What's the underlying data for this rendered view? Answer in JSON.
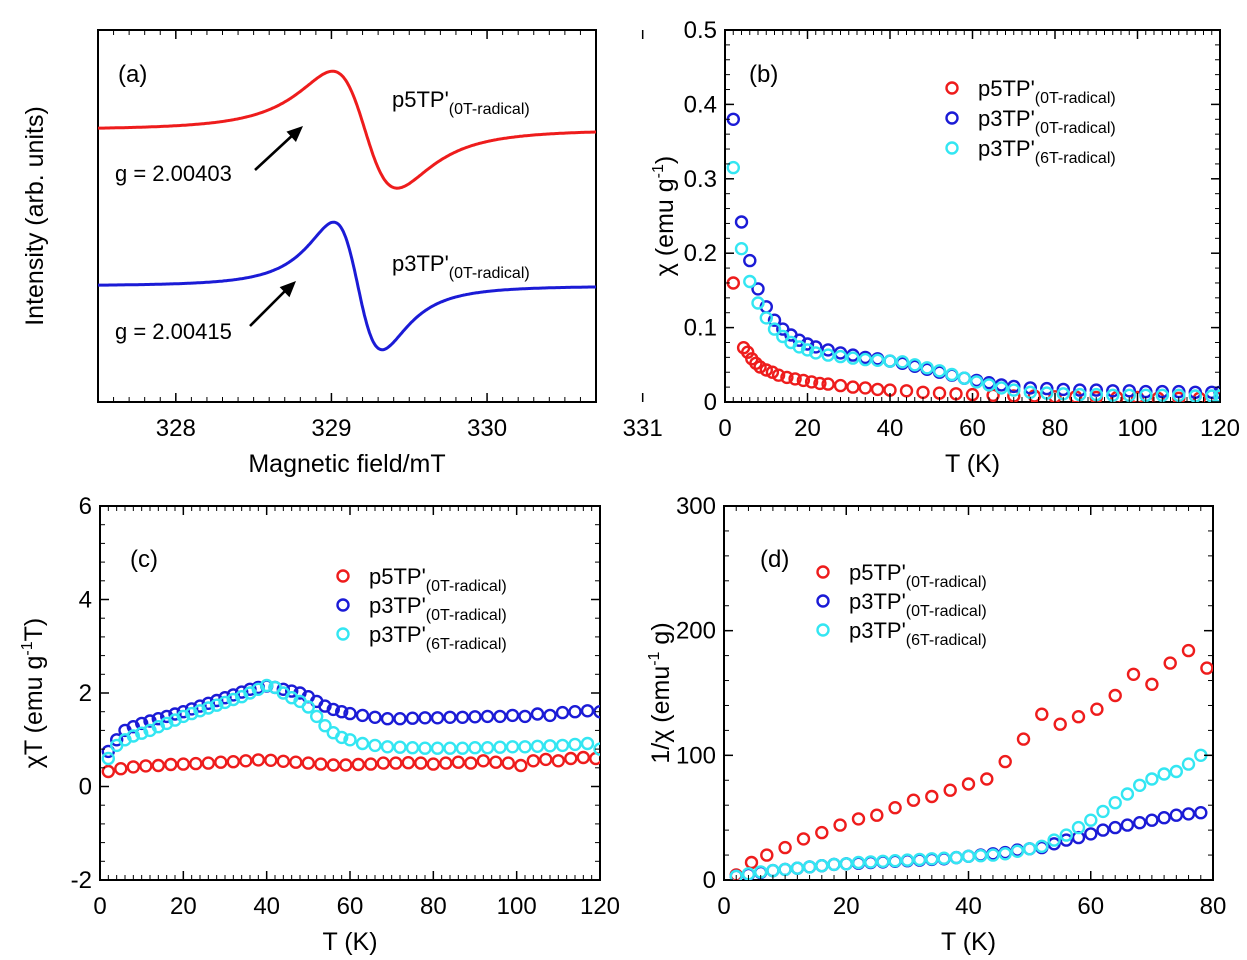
{
  "chart_data": [
    {
      "panel": "(a)",
      "type": "line",
      "xlabel": "Magnetic field/mT",
      "ylabel": "Intensity (arb. units)",
      "xlim": [
        327.5,
        330.7
      ],
      "ylim": [
        0,
        1
      ],
      "y_tick_labels": false,
      "xticks": [
        328,
        329,
        330,
        331
      ],
      "x_tick_labels": [
        "328",
        "329",
        "330",
        "331"
      ],
      "series": [
        {
          "name": "p5TP'(0T-radical)",
          "name_main": "p5TP'",
          "name_sub": "(0T-radical)",
          "color": "#ee1c1c",
          "center": 329.215,
          "half_width": 0.36,
          "amplitude": 0.22,
          "baseline": 0.732,
          "g_value": "g = 2.00403",
          "arrow_x": 329.14
        },
        {
          "name": "p3TP'(0T-radical)",
          "name_main": "p3TP'",
          "name_sub": "(0T-radical)",
          "color": "#1b1bd6",
          "center": 329.17,
          "half_width": 0.27,
          "amplitude": 0.24,
          "baseline": 0.312,
          "g_value": "g = 2.00415",
          "arrow_x": 329.05
        }
      ]
    },
    {
      "panel": "(b)",
      "type": "scatter",
      "xlabel": "T (K)",
      "ylabel_main": "χ  (emu g",
      "ylabel_sup": "-1",
      "ylabel_end": ")",
      "xlim": [
        0,
        120
      ],
      "ylim": [
        0,
        0.5
      ],
      "xticks": [
        0,
        20,
        40,
        60,
        80,
        100,
        120
      ],
      "x_tick_labels": [
        "0",
        "20",
        "40",
        "60",
        "80",
        "100",
        "120"
      ],
      "yticks": [
        0,
        0.1,
        0.2,
        0.3,
        0.4,
        0.5
      ],
      "y_tick_labels": [
        "0",
        "0.1",
        "0.2",
        "0.3",
        "0.4",
        "0.5"
      ],
      "legend_position": "top-right",
      "series": [
        {
          "name": "p5TP'(0T-radical)",
          "name_main": "p5TP'",
          "name_sub": "(0T-radical)",
          "color": "#ee1c1c",
          "x": [
            2,
            4.5,
            5.5,
            6.5,
            7.5,
            8.5,
            10,
            11.5,
            13,
            15,
            17,
            19,
            21,
            23,
            25,
            28,
            31,
            34,
            37,
            40,
            44,
            48,
            52,
            56,
            60,
            65,
            70,
            75,
            80,
            85,
            90,
            95,
            100,
            105,
            110,
            115,
            120
          ],
          "y": [
            0.16,
            0.073,
            0.067,
            0.058,
            0.052,
            0.047,
            0.043,
            0.04,
            0.036,
            0.033,
            0.031,
            0.029,
            0.027,
            0.025,
            0.024,
            0.022,
            0.02,
            0.019,
            0.017,
            0.016,
            0.015,
            0.013,
            0.012,
            0.011,
            0.01,
            0.009,
            0.008,
            0.008,
            0.007,
            0.007,
            0.006,
            0.006,
            0.006,
            0.005,
            0.005,
            0.005,
            0.005
          ]
        },
        {
          "name": "p3TP'(0T-radical)",
          "name_main": "p3TP'",
          "name_sub": "(0T-radical)",
          "color": "#1b1bd6",
          "x": [
            2,
            4,
            6,
            8,
            10,
            12,
            14,
            16,
            18,
            20,
            22,
            25,
            28,
            31,
            34,
            37,
            40,
            43,
            46,
            49,
            52,
            55,
            58,
            61,
            64,
            67,
            70,
            74,
            78,
            82,
            86,
            90,
            94,
            98,
            102,
            106,
            110,
            114,
            118,
            120
          ],
          "y": [
            0.38,
            0.242,
            0.19,
            0.152,
            0.128,
            0.11,
            0.098,
            0.09,
            0.083,
            0.078,
            0.074,
            0.07,
            0.066,
            0.063,
            0.06,
            0.058,
            0.055,
            0.052,
            0.048,
            0.044,
            0.04,
            0.036,
            0.032,
            0.029,
            0.026,
            0.023,
            0.021,
            0.019,
            0.018,
            0.017,
            0.016,
            0.016,
            0.015,
            0.015,
            0.014,
            0.014,
            0.014,
            0.013,
            0.013,
            0.013
          ]
        },
        {
          "name": "p3TP'(6T-radical)",
          "name_main": "p3TP'",
          "name_sub": "(6T-radical)",
          "color": "#33e6f2",
          "x": [
            2,
            4,
            6,
            8,
            10,
            12,
            14,
            16,
            18,
            20,
            22,
            25,
            28,
            31,
            34,
            37,
            40,
            43,
            46,
            49,
            52,
            55,
            58,
            61,
            64,
            67,
            70,
            74,
            78,
            82,
            86,
            90,
            94,
            98,
            102,
            106,
            110,
            114,
            118,
            120
          ],
          "y": [
            0.315,
            0.206,
            0.162,
            0.133,
            0.113,
            0.098,
            0.088,
            0.08,
            0.074,
            0.07,
            0.066,
            0.063,
            0.061,
            0.059,
            0.057,
            0.056,
            0.055,
            0.054,
            0.05,
            0.046,
            0.042,
            0.037,
            0.032,
            0.027,
            0.023,
            0.019,
            0.016,
            0.013,
            0.012,
            0.011,
            0.01,
            0.01,
            0.009,
            0.009,
            0.009,
            0.009,
            0.009,
            0.008,
            0.008,
            0.008
          ]
        }
      ]
    },
    {
      "panel": "(c)",
      "type": "scatter",
      "xlabel": "T (K)",
      "ylabel_main": "χT  (emu g",
      "ylabel_sup": "-1",
      "ylabel_end": "T)",
      "xlim": [
        0,
        120
      ],
      "ylim": [
        -2,
        6
      ],
      "xticks": [
        0,
        20,
        40,
        60,
        80,
        100,
        120
      ],
      "x_tick_labels": [
        "0",
        "20",
        "40",
        "60",
        "80",
        "100",
        "120"
      ],
      "yticks": [
        -2,
        0,
        2,
        4,
        6
      ],
      "y_tick_labels": [
        "-2",
        "0",
        "2",
        "4",
        "6"
      ],
      "legend_position": "top-right",
      "series": [
        {
          "name": "p5TP'(0T-radical)",
          "name_main": "p5TP'",
          "name_sub": "(0T-radical)",
          "color": "#ee1c1c",
          "x": [
            2,
            5,
            8,
            11,
            14,
            17,
            20,
            23,
            26,
            29,
            32,
            35,
            38,
            41,
            44,
            47,
            50,
            53,
            56,
            59,
            62,
            65,
            68,
            71,
            74,
            77,
            80,
            83,
            86,
            89,
            92,
            95,
            98,
            101,
            104,
            107,
            110,
            113,
            116,
            119
          ],
          "y": [
            0.32,
            0.38,
            0.42,
            0.44,
            0.45,
            0.47,
            0.48,
            0.49,
            0.5,
            0.52,
            0.53,
            0.55,
            0.57,
            0.56,
            0.54,
            0.52,
            0.5,
            0.48,
            0.46,
            0.46,
            0.47,
            0.48,
            0.5,
            0.5,
            0.51,
            0.5,
            0.48,
            0.5,
            0.52,
            0.5,
            0.55,
            0.52,
            0.5,
            0.45,
            0.55,
            0.58,
            0.55,
            0.6,
            0.62,
            0.6
          ]
        },
        {
          "name": "p3TP'(0T-radical)",
          "name_main": "p3TP'",
          "name_sub": "(0T-radical)",
          "color": "#1b1bd6",
          "x": [
            2,
            4,
            6,
            8,
            10,
            12,
            14,
            16,
            18,
            20,
            22,
            24,
            26,
            28,
            30,
            32,
            34,
            36,
            38,
            40,
            42,
            44,
            46,
            48,
            50,
            52,
            54,
            56,
            58,
            60,
            63,
            66,
            69,
            72,
            75,
            78,
            81,
            84,
            87,
            90,
            93,
            96,
            99,
            102,
            105,
            108,
            111,
            114,
            117,
            120
          ],
          "y": [
            0.75,
            1.0,
            1.2,
            1.28,
            1.35,
            1.4,
            1.45,
            1.5,
            1.55,
            1.6,
            1.66,
            1.72,
            1.78,
            1.84,
            1.9,
            1.96,
            2.02,
            2.08,
            2.12,
            2.15,
            2.12,
            2.08,
            2.04,
            2.0,
            1.92,
            1.82,
            1.72,
            1.65,
            1.6,
            1.56,
            1.52,
            1.48,
            1.45,
            1.45,
            1.46,
            1.47,
            1.47,
            1.48,
            1.48,
            1.49,
            1.5,
            1.5,
            1.52,
            1.5,
            1.55,
            1.52,
            1.58,
            1.6,
            1.62,
            1.6
          ]
        },
        {
          "name": "p3TP'(6T-radical)",
          "name_main": "p3TP'",
          "name_sub": "(6T-radical)",
          "color": "#33e6f2",
          "x": [
            2,
            4,
            6,
            8,
            10,
            12,
            14,
            16,
            18,
            20,
            22,
            24,
            26,
            28,
            30,
            32,
            34,
            36,
            38,
            40,
            42,
            44,
            46,
            48,
            50,
            52,
            54,
            56,
            58,
            60,
            63,
            66,
            69,
            72,
            75,
            78,
            81,
            84,
            87,
            90,
            93,
            96,
            99,
            102,
            105,
            108,
            111,
            114,
            117,
            120
          ],
          "y": [
            0.6,
            0.88,
            1.0,
            1.08,
            1.14,
            1.2,
            1.28,
            1.35,
            1.42,
            1.5,
            1.56,
            1.62,
            1.68,
            1.74,
            1.8,
            1.86,
            1.92,
            2.0,
            2.08,
            2.16,
            2.12,
            2.0,
            1.9,
            1.82,
            1.7,
            1.5,
            1.3,
            1.15,
            1.05,
            1.0,
            0.92,
            0.88,
            0.85,
            0.84,
            0.83,
            0.82,
            0.82,
            0.82,
            0.82,
            0.83,
            0.83,
            0.84,
            0.85,
            0.85,
            0.86,
            0.87,
            0.88,
            0.9,
            0.92,
            0.8
          ]
        }
      ]
    },
    {
      "panel": "(d)",
      "type": "scatter",
      "xlabel": "T (K)",
      "ylabel_main": "1/χ  (emu",
      "ylabel_sup": "-1",
      "ylabel_end": " g)",
      "xlim": [
        0,
        80
      ],
      "ylim": [
        0,
        300
      ],
      "xticks": [
        0,
        20,
        40,
        60,
        80
      ],
      "x_tick_labels": [
        "0",
        "20",
        "40",
        "60",
        "80"
      ],
      "yticks": [
        0,
        100,
        200,
        300
      ],
      "y_tick_labels": [
        "0",
        "100",
        "200",
        "300"
      ],
      "legend_position": "top-left",
      "series": [
        {
          "name": "p5TP'(0T-radical)",
          "name_main": "p5TP'",
          "name_sub": "(0T-radical)",
          "color": "#ee1c1c",
          "x": [
            2,
            4.5,
            7,
            10,
            13,
            16,
            19,
            22,
            25,
            28,
            31,
            34,
            37,
            40,
            43,
            46,
            49,
            52,
            55,
            58,
            61,
            64,
            67,
            70,
            73,
            76,
            79
          ],
          "y": [
            4,
            14,
            20,
            26,
            33,
            38,
            44,
            49,
            52,
            58,
            64,
            67,
            72,
            77,
            81,
            95,
            113,
            133,
            125,
            131,
            137,
            148,
            165,
            157,
            174,
            184,
            170
          ]
        },
        {
          "name": "p3TP'(0T-radical)",
          "name_main": "p3TP'",
          "name_sub": "(0T-radical)",
          "color": "#1b1bd6",
          "x": [
            2,
            4,
            6,
            8,
            10,
            12,
            14,
            16,
            18,
            20,
            22,
            24,
            26,
            28,
            30,
            32,
            34,
            36,
            38,
            40,
            42,
            44,
            46,
            48,
            50,
            52,
            54,
            56,
            58,
            60,
            62,
            64,
            66,
            68,
            70,
            72,
            74,
            76,
            78
          ],
          "y": [
            3,
            4.5,
            6,
            7.5,
            8.5,
            9.5,
            10.5,
            11.5,
            12.5,
            13,
            13.5,
            14,
            14.5,
            15,
            15.5,
            16,
            16.5,
            17,
            18,
            19,
            20,
            21,
            22,
            24,
            25,
            26,
            29,
            32,
            34,
            37,
            40,
            42,
            44,
            46,
            48,
            50,
            52,
            53,
            54
          ]
        },
        {
          "name": "p3TP'(6T-radical)",
          "name_main": "p3TP'",
          "name_sub": "(6T-radical)",
          "color": "#33e6f2",
          "x": [
            2,
            4,
            6,
            8,
            10,
            12,
            14,
            16,
            18,
            20,
            22,
            24,
            26,
            28,
            30,
            32,
            34,
            36,
            38,
            40,
            42,
            44,
            46,
            48,
            50,
            52,
            54,
            56,
            58,
            60,
            62,
            64,
            66,
            68,
            70,
            72,
            74,
            76,
            78
          ],
          "y": [
            3,
            5,
            6.5,
            7.5,
            8.5,
            9.5,
            10.5,
            11.5,
            12.5,
            13,
            14,
            14.5,
            15,
            15.5,
            16,
            16.5,
            17,
            17.5,
            18,
            19,
            19.5,
            20,
            21,
            23,
            25,
            27,
            32,
            36,
            42,
            48,
            55,
            62,
            69,
            76,
            81,
            85,
            87,
            93,
            100
          ]
        }
      ]
    }
  ]
}
